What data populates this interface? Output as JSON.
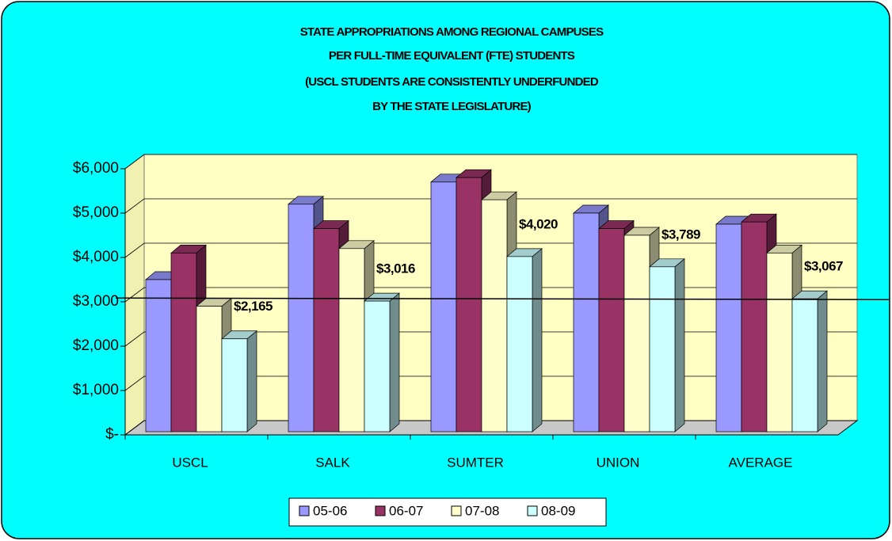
{
  "chart_data": {
    "type": "bar3d",
    "title": [
      "STATE APPROPRIATIONS AMONG REGIONAL CAMPUSES",
      "PER FULL-TIME EQUIVALENT (FTE) STUDENTS",
      "(USCL STUDENTS ARE CONSISTENTLY UNDERFUNDED",
      "BY THE STATE LEGISLATURE)"
    ],
    "categories": [
      "USCL",
      "SALK",
      "SUMTER",
      "UNION",
      "AVERAGE"
    ],
    "series": [
      {
        "name": "05-06",
        "color": "#9999ff",
        "values": [
          3500,
          5200,
          5700,
          5000,
          4750
        ]
      },
      {
        "name": "06-07",
        "color": "#993366",
        "values": [
          4100,
          4650,
          5800,
          4650,
          4800
        ]
      },
      {
        "name": "07-08",
        "color": "#ffffcc",
        "values": [
          2900,
          4200,
          5300,
          4500,
          4100
        ]
      },
      {
        "name": "08-09",
        "color": "#ccffff",
        "values": [
          2165,
          3016,
          4020,
          3789,
          3067
        ],
        "value_labels": [
          "$2,165",
          "$3,016",
          "$4,020",
          "$3,789",
          "$3,067"
        ]
      }
    ],
    "ylim": [
      0,
      6000
    ],
    "yticks": [
      {
        "value": 0,
        "label": "$-"
      },
      {
        "value": 1000,
        "label": "$1,000"
      },
      {
        "value": 2000,
        "label": "$2,000"
      },
      {
        "value": 3000,
        "label": "$3,000"
      },
      {
        "value": 4000,
        "label": "$4,000"
      },
      {
        "value": 5000,
        "label": "$5,000"
      },
      {
        "value": 6000,
        "label": "$6,000"
      }
    ],
    "grid": true,
    "legend": "bottom"
  }
}
